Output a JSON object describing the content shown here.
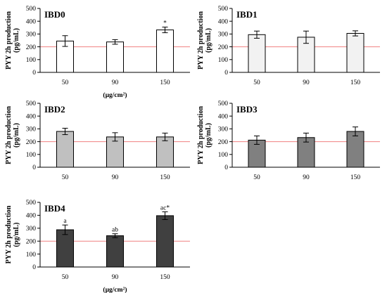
{
  "chart_data": [
    {
      "type": "bar",
      "title": "IBD0",
      "ylabel": "PYY 2h production (pg/mL)",
      "ylabel_lines": [
        "PYY 2h production",
        "(pg/mL)"
      ],
      "xlabel": "(µg/cm²)",
      "categories": [
        "50",
        "90",
        "150"
      ],
      "values": [
        245,
        238,
        332
      ],
      "errors": [
        42,
        18,
        22
      ],
      "annotations": [
        "",
        "",
        "*"
      ],
      "ylim": [
        0,
        500
      ],
      "yticks": [
        "0",
        "100",
        "200",
        "300",
        "400",
        "500"
      ],
      "reference_line": 200,
      "bar_color": "#ffffff",
      "reference_line_color": "#f08080"
    },
    {
      "type": "bar",
      "title": "IBD1",
      "ylabel": "PYY 2h production (pg/mL)",
      "ylabel_lines": [
        "PYY 2h production",
        "(pg/mL)"
      ],
      "xlabel": "",
      "categories": [
        "50",
        "90",
        "150"
      ],
      "values": [
        295,
        275,
        305
      ],
      "errors": [
        28,
        48,
        20
      ],
      "annotations": [
        "",
        "",
        ""
      ],
      "ylim": [
        0,
        500
      ],
      "yticks": [
        "0",
        "100",
        "200",
        "300",
        "400",
        "500"
      ],
      "reference_line": 200,
      "bar_color": "#f2f2f2",
      "reference_line_color": "#f08080"
    },
    {
      "type": "bar",
      "title": "IBD2",
      "ylabel": "PYY 2h production (pg/mL)",
      "ylabel_lines": [
        "PYY 2h production",
        "(pg/mL)"
      ],
      "xlabel": "",
      "categories": [
        "50",
        "90",
        "150"
      ],
      "values": [
        280,
        237,
        237
      ],
      "errors": [
        25,
        33,
        30
      ],
      "annotations": [
        "",
        "",
        ""
      ],
      "ylim": [
        0,
        500
      ],
      "yticks": [
        "0",
        "100",
        "200",
        "300",
        "400",
        "500"
      ],
      "reference_line": 200,
      "bar_color": "#c0c0c0",
      "reference_line_color": "#f08080"
    },
    {
      "type": "bar",
      "title": "IBD3",
      "ylabel": "PYY 2h production (pg/mL)",
      "ylabel_lines": [
        "PYY 2h production",
        "(pg/mL)"
      ],
      "xlabel": "",
      "categories": [
        "50",
        "90",
        "150"
      ],
      "values": [
        212,
        232,
        280
      ],
      "errors": [
        33,
        35,
        35
      ],
      "annotations": [
        "",
        "",
        ""
      ],
      "ylim": [
        0,
        500
      ],
      "yticks": [
        "0",
        "100",
        "200",
        "300",
        "400",
        "500"
      ],
      "reference_line": 200,
      "bar_color": "#808080",
      "reference_line_color": "#f08080"
    },
    {
      "type": "bar",
      "title": "IBD4",
      "ylabel": "PYY 2h production (pg/mL)",
      "ylabel_lines": [
        "PYY 2h production",
        "(pg/mL)"
      ],
      "xlabel": "(µg/cm²)",
      "categories": [
        "50",
        "90",
        "150"
      ],
      "values": [
        288,
        242,
        397
      ],
      "errors": [
        37,
        15,
        30
      ],
      "annotations": [
        "a",
        "ab",
        "ac*"
      ],
      "ylim": [
        0,
        500
      ],
      "yticks": [
        "0",
        "100",
        "200",
        "300",
        "400",
        "500"
      ],
      "reference_line": 200,
      "bar_color": "#404040",
      "reference_line_color": "#f08080"
    }
  ]
}
